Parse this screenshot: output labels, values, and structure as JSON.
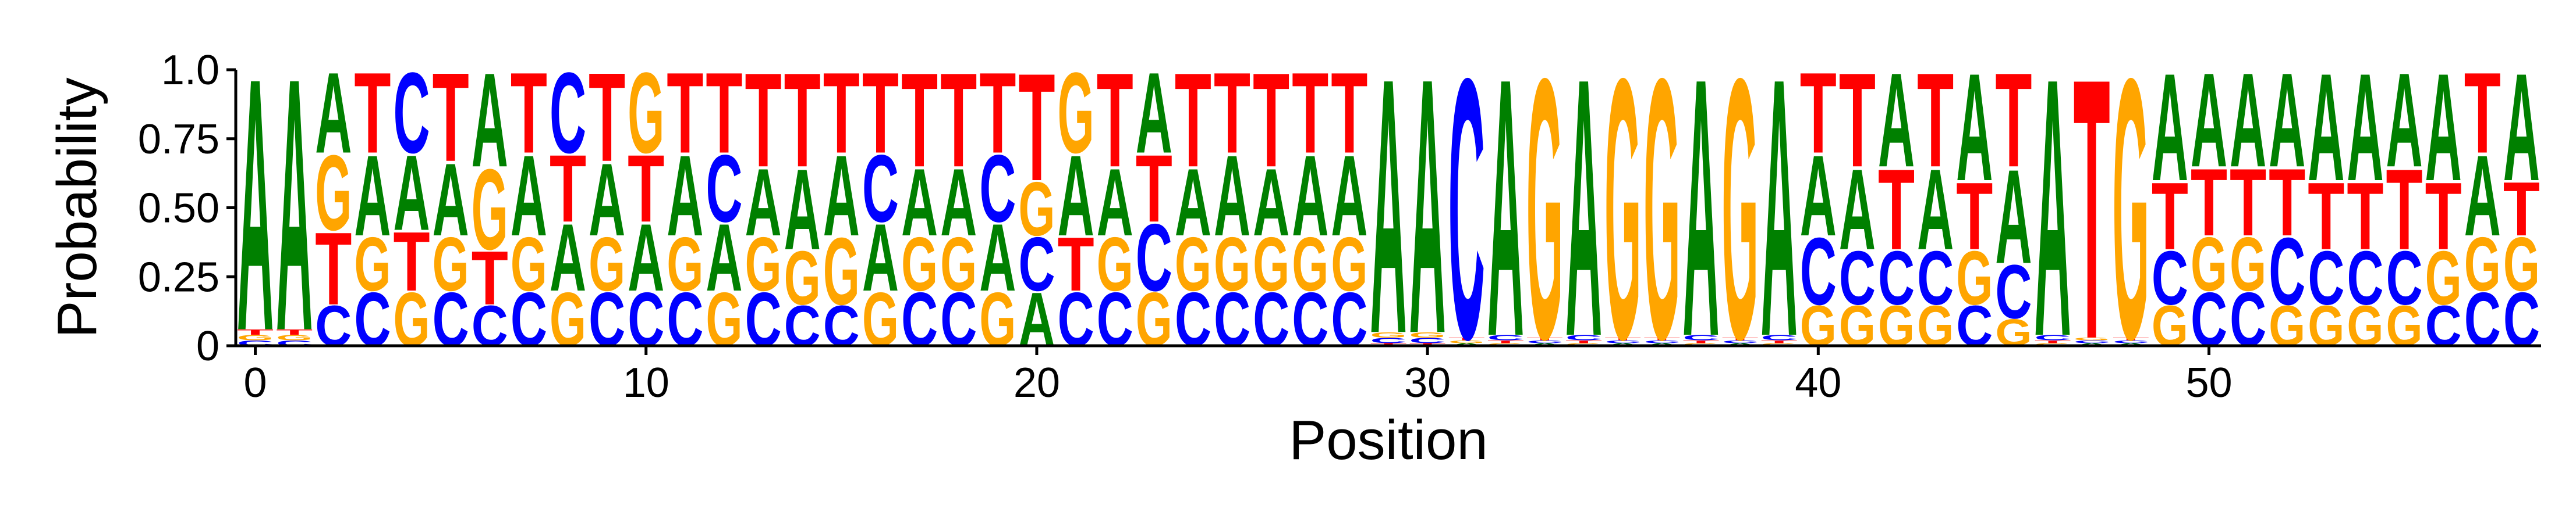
{
  "chart_data": {
    "type": "sequence-logo",
    "title": "",
    "xlabel": "Position",
    "ylabel": "Probability",
    "ylim": [
      0,
      1
    ],
    "xlim": [
      -0.5,
      58.5
    ],
    "x_ticks": [
      0,
      10,
      20,
      30,
      40,
      50
    ],
    "y_ticks": [
      0,
      0.25,
      0.5,
      0.75,
      1.0
    ],
    "y_tick_labels": [
      "0",
      "0.25",
      "0.50",
      "0.75",
      "1.0"
    ],
    "spines": [
      "left",
      "bottom"
    ],
    "grid": false,
    "legend": "none",
    "alphabet": [
      "A",
      "C",
      "G",
      "T"
    ],
    "colors": {
      "A": "#008000",
      "C": "#0000ff",
      "G": "#ffa500",
      "T": "#ff0000"
    },
    "positions": [
      {
        "A": 0.94,
        "C": 0.02,
        "G": 0.02,
        "T": 0.02
      },
      {
        "A": 0.94,
        "C": 0.02,
        "G": 0.02,
        "T": 0.02
      },
      {
        "A": 0.3,
        "C": 0.15,
        "G": 0.28,
        "T": 0.27
      },
      {
        "A": 0.3,
        "C": 0.2,
        "G": 0.2,
        "T": 0.3
      },
      {
        "A": 0.28,
        "C": 0.3,
        "G": 0.2,
        "T": 0.22
      },
      {
        "A": 0.27,
        "C": 0.2,
        "G": 0.2,
        "T": 0.33
      },
      {
        "A": 0.35,
        "C": 0.15,
        "G": 0.3,
        "T": 0.2
      },
      {
        "A": 0.3,
        "C": 0.2,
        "G": 0.2,
        "T": 0.3
      },
      {
        "A": 0.25,
        "C": 0.3,
        "G": 0.2,
        "T": 0.25
      },
      {
        "A": 0.27,
        "C": 0.2,
        "G": 0.2,
        "T": 0.33
      },
      {
        "A": 0.25,
        "C": 0.2,
        "G": 0.3,
        "T": 0.25
      },
      {
        "A": 0.3,
        "C": 0.2,
        "G": 0.2,
        "T": 0.3
      },
      {
        "A": 0.25,
        "C": 0.25,
        "G": 0.2,
        "T": 0.3
      },
      {
        "A": 0.25,
        "C": 0.2,
        "G": 0.2,
        "T": 0.35
      },
      {
        "A": 0.3,
        "C": 0.15,
        "G": 0.2,
        "T": 0.35
      },
      {
        "A": 0.3,
        "C": 0.15,
        "G": 0.25,
        "T": 0.3
      },
      {
        "A": 0.25,
        "C": 0.25,
        "G": 0.2,
        "T": 0.3
      },
      {
        "A": 0.25,
        "C": 0.2,
        "G": 0.2,
        "T": 0.35
      },
      {
        "A": 0.25,
        "C": 0.2,
        "G": 0.2,
        "T": 0.35
      },
      {
        "A": 0.25,
        "C": 0.25,
        "G": 0.2,
        "T": 0.3
      },
      {
        "A": 0.2,
        "C": 0.2,
        "G": 0.2,
        "T": 0.4
      },
      {
        "A": 0.3,
        "C": 0.2,
        "G": 0.3,
        "T": 0.2
      },
      {
        "A": 0.25,
        "C": 0.2,
        "G": 0.2,
        "T": 0.35
      },
      {
        "A": 0.3,
        "C": 0.25,
        "G": 0.2,
        "T": 0.25
      },
      {
        "A": 0.25,
        "C": 0.2,
        "G": 0.2,
        "T": 0.35
      },
      {
        "A": 0.3,
        "C": 0.2,
        "G": 0.2,
        "T": 0.3
      },
      {
        "A": 0.25,
        "C": 0.2,
        "G": 0.2,
        "T": 0.35
      },
      {
        "A": 0.3,
        "C": 0.2,
        "G": 0.2,
        "T": 0.3
      },
      {
        "A": 0.3,
        "C": 0.2,
        "G": 0.2,
        "T": 0.3
      },
      {
        "A": 0.95,
        "C": 0.02,
        "G": 0.02,
        "T": 0.01
      },
      {
        "A": 0.95,
        "C": 0.02,
        "G": 0.02,
        "T": 0.01
      },
      {
        "A": 0.01,
        "C": 0.97,
        "G": 0.01,
        "T": 0.01
      },
      {
        "A": 0.96,
        "C": 0.02,
        "G": 0.01,
        "T": 0.01
      },
      {
        "A": 0.01,
        "C": 0.01,
        "G": 0.97,
        "T": 0.01
      },
      {
        "A": 0.96,
        "C": 0.02,
        "G": 0.01,
        "T": 0.01
      },
      {
        "A": 0.01,
        "C": 0.01,
        "G": 0.97,
        "T": 0.01
      },
      {
        "A": 0.01,
        "C": 0.01,
        "G": 0.97,
        "T": 0.01
      },
      {
        "A": 0.96,
        "C": 0.02,
        "G": 0.01,
        "T": 0.01
      },
      {
        "A": 0.01,
        "C": 0.01,
        "G": 0.97,
        "T": 0.01
      },
      {
        "A": 0.96,
        "C": 0.02,
        "G": 0.01,
        "T": 0.01
      },
      {
        "A": 0.3,
        "C": 0.25,
        "G": 0.15,
        "T": 0.3
      },
      {
        "A": 0.3,
        "C": 0.2,
        "G": 0.15,
        "T": 0.35
      },
      {
        "A": 0.35,
        "C": 0.2,
        "G": 0.15,
        "T": 0.3
      },
      {
        "A": 0.3,
        "C": 0.2,
        "G": 0.15,
        "T": 0.35
      },
      {
        "A": 0.4,
        "C": 0.15,
        "G": 0.2,
        "T": 0.25
      },
      {
        "A": 0.35,
        "C": 0.2,
        "G": 0.1,
        "T": 0.35
      },
      {
        "A": 0.96,
        "C": 0.02,
        "G": 0.01,
        "T": 0.01
      },
      {
        "A": 0.01,
        "C": 0.01,
        "G": 0.01,
        "T": 0.97
      },
      {
        "A": 0.01,
        "C": 0.01,
        "G": 0.97,
        "T": 0.01
      },
      {
        "A": 0.4,
        "C": 0.2,
        "G": 0.15,
        "T": 0.25
      },
      {
        "A": 0.35,
        "C": 0.2,
        "G": 0.2,
        "T": 0.25
      },
      {
        "A": 0.35,
        "C": 0.2,
        "G": 0.2,
        "T": 0.25
      },
      {
        "A": 0.35,
        "C": 0.25,
        "G": 0.15,
        "T": 0.25
      },
      {
        "A": 0.4,
        "C": 0.2,
        "G": 0.15,
        "T": 0.25
      },
      {
        "A": 0.4,
        "C": 0.2,
        "G": 0.15,
        "T": 0.25
      },
      {
        "A": 0.35,
        "C": 0.2,
        "G": 0.15,
        "T": 0.3
      },
      {
        "A": 0.4,
        "C": 0.15,
        "G": 0.2,
        "T": 0.25
      },
      {
        "A": 0.3,
        "C": 0.2,
        "G": 0.2,
        "T": 0.3
      },
      {
        "A": 0.4,
        "C": 0.2,
        "G": 0.2,
        "T": 0.2
      }
    ]
  }
}
